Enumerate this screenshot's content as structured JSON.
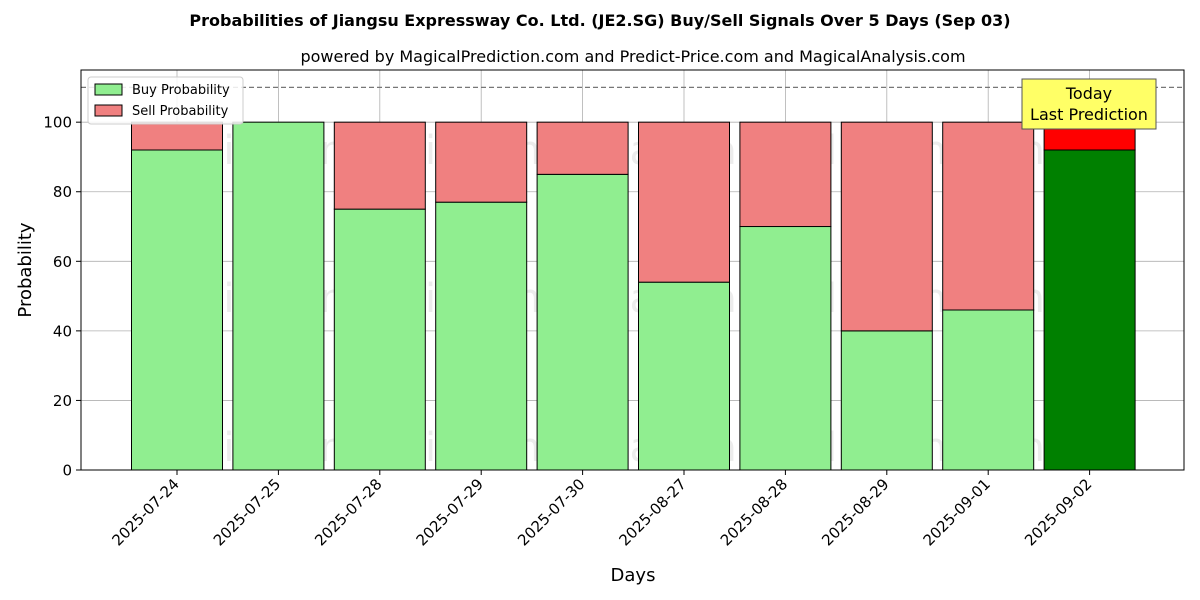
{
  "chart_data": {
    "type": "bar",
    "stacked": true,
    "title": "Probabilities of Jiangsu Expressway Co. Ltd. (JE2.SG) Buy/Sell Signals Over 5 Days (Sep 03)",
    "subtitle": "powered by MagicalPrediction.com and Predict-Price.com and MagicalAnalysis.com",
    "xlabel": "Days",
    "ylabel": "Probability",
    "ylim": [
      0,
      115
    ],
    "yticks": [
      0,
      20,
      40,
      60,
      80,
      100
    ],
    "reference_line": 110,
    "grid": true,
    "legend_position": "top-left",
    "categories": [
      "2025-07-24",
      "2025-07-25",
      "2025-07-28",
      "2025-07-29",
      "2025-07-30",
      "2025-08-27",
      "2025-08-28",
      "2025-08-29",
      "2025-09-01",
      "2025-09-02"
    ],
    "series": [
      {
        "name": "Buy Probability",
        "color": "#90ee90",
        "values": [
          92,
          100,
          75,
          77,
          85,
          54,
          70,
          40,
          46,
          92
        ]
      },
      {
        "name": "Sell Probability",
        "color": "#f08080",
        "values": [
          8,
          0,
          25,
          23,
          15,
          46,
          30,
          60,
          54,
          8
        ]
      }
    ],
    "highlight": {
      "index": 9,
      "buy_color": "#008000",
      "sell_color": "#ff0000"
    },
    "annotation": {
      "line1": "Today",
      "line2": "Last Prediction",
      "background": "#ffff66"
    },
    "watermarks": [
      "MagicalAnalysis.com",
      "MagicalPrediction.com"
    ]
  }
}
